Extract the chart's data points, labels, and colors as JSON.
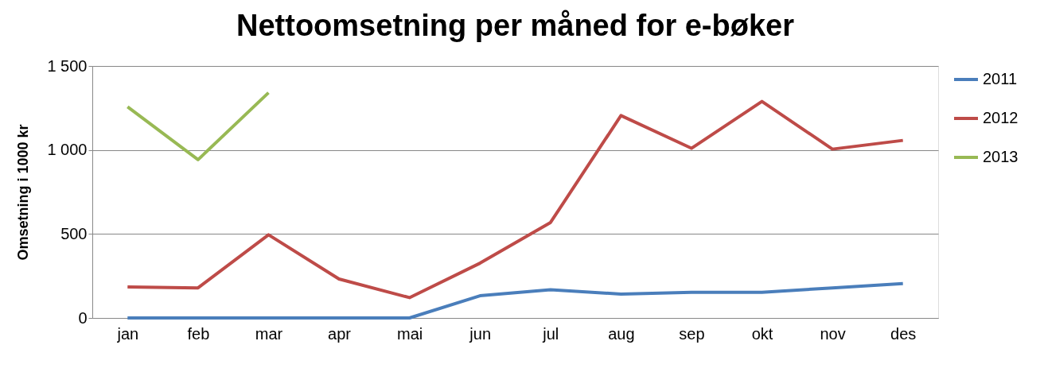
{
  "chart_data": {
    "type": "line",
    "title": "Nettoomsetning per måned for e-bøker",
    "ylabel": "Omsetning i 1000 kr",
    "categories": [
      "jan",
      "feb",
      "mar",
      "apr",
      "mai",
      "jun",
      "jul",
      "aug",
      "sep",
      "okt",
      "nov",
      "des"
    ],
    "series": [
      {
        "name": "2011",
        "color": "#4a7ebb",
        "values": [
          0,
          0,
          0,
          0,
          0,
          132,
          168,
          142,
          153,
          153,
          179,
          205
        ]
      },
      {
        "name": "2012",
        "color": "#be4b48",
        "values": [
          184,
          179,
          495,
          232,
          121,
          326,
          568,
          1205,
          1010,
          1289,
          1005,
          1057
        ]
      },
      {
        "name": "2013",
        "color": "#98b954",
        "values": [
          1257,
          942,
          1341,
          null,
          null,
          null,
          null,
          null,
          null,
          null,
          null,
          null
        ]
      }
    ],
    "ylim": [
      0,
      1500
    ],
    "yticks": [
      0,
      500,
      {
        "value": 1000,
        "label": "1 000"
      },
      {
        "value": 1500,
        "label": "1 500"
      }
    ],
    "grid": "y",
    "legend": "right",
    "marker": "none",
    "line_style": "solid"
  }
}
